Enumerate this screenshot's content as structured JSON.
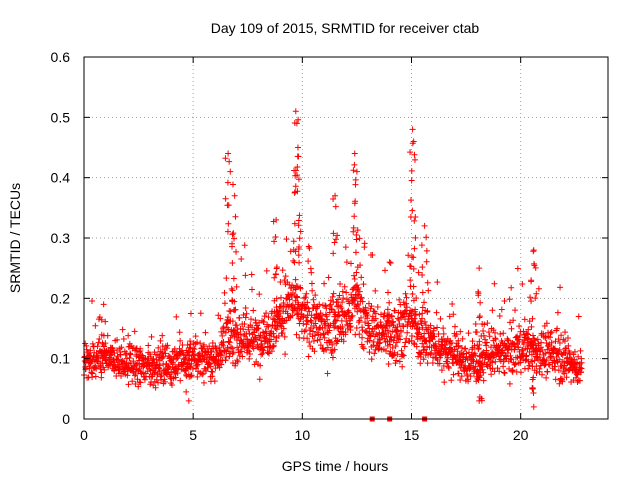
{
  "chart_data": {
    "type": "scatter",
    "title": "Day 109 of 2015, SRMTID for receiver ctab",
    "xlabel": "GPS time / hours",
    "ylabel": "SRMTID / TECUs",
    "xlim": [
      0,
      24
    ],
    "ylim": [
      0,
      0.6
    ],
    "xticks": [
      0,
      5,
      10,
      15,
      20
    ],
    "xtick_labels": [
      "0",
      "5",
      "10",
      "15",
      "20"
    ],
    "yticks": [
      0,
      0.1,
      0.2,
      0.3,
      0.4,
      0.5,
      0.6
    ],
    "ytick_labels": [
      "0",
      "0.1",
      "0.2",
      "0.3",
      "0.4",
      "0.5",
      "0.6"
    ],
    "grid": true,
    "marker": "+",
    "marker_color": "#ff0000",
    "x_range_hours": [
      0,
      22.8
    ],
    "series": [
      {
        "name": "SRMTID",
        "envelope_x": [
          0,
          1,
          2,
          3,
          4,
          5,
          6,
          6.5,
          7,
          8,
          9,
          9.5,
          10,
          11,
          12,
          12.5,
          13,
          14,
          15,
          16,
          17,
          17.5,
          18,
          19,
          20,
          21,
          22,
          22.8
        ],
        "envelope_median": [
          0.09,
          0.1,
          0.09,
          0.085,
          0.09,
          0.1,
          0.1,
          0.13,
          0.14,
          0.13,
          0.17,
          0.2,
          0.17,
          0.15,
          0.17,
          0.19,
          0.15,
          0.14,
          0.16,
          0.12,
          0.11,
          0.09,
          0.1,
          0.11,
          0.12,
          0.11,
          0.1,
          0.08
        ],
        "envelope_spread": [
          0.03,
          0.03,
          0.03,
          0.03,
          0.03,
          0.035,
          0.03,
          0.045,
          0.05,
          0.045,
          0.05,
          0.06,
          0.05,
          0.05,
          0.055,
          0.06,
          0.05,
          0.05,
          0.05,
          0.04,
          0.04,
          0.035,
          0.04,
          0.04,
          0.045,
          0.04,
          0.035,
          0.03
        ],
        "spikes": [
          {
            "x": 6.6,
            "y": 0.44
          },
          {
            "x": 6.7,
            "y": 0.41
          },
          {
            "x": 6.9,
            "y": 0.37
          },
          {
            "x": 8.8,
            "y": 0.33
          },
          {
            "x": 9.7,
            "y": 0.51
          },
          {
            "x": 9.75,
            "y": 0.49
          },
          {
            "x": 9.8,
            "y": 0.45
          },
          {
            "x": 11.5,
            "y": 0.37
          },
          {
            "x": 12.4,
            "y": 0.44
          },
          {
            "x": 12.5,
            "y": 0.41
          },
          {
            "x": 14.0,
            "y": 0.26
          },
          {
            "x": 15.05,
            "y": 0.48
          },
          {
            "x": 15.1,
            "y": 0.46
          },
          {
            "x": 15.6,
            "y": 0.32
          },
          {
            "x": 20.6,
            "y": 0.28
          },
          {
            "x": 18.1,
            "y": 0.25
          },
          {
            "x": 0.9,
            "y": 0.19
          },
          {
            "x": 4.8,
            "y": 0.03
          },
          {
            "x": 20.6,
            "y": 0.02
          },
          {
            "x": 18.1,
            "y": 0.03
          }
        ]
      }
    ],
    "gap_markers_x": [
      13.2,
      14.0,
      15.6
    ]
  }
}
